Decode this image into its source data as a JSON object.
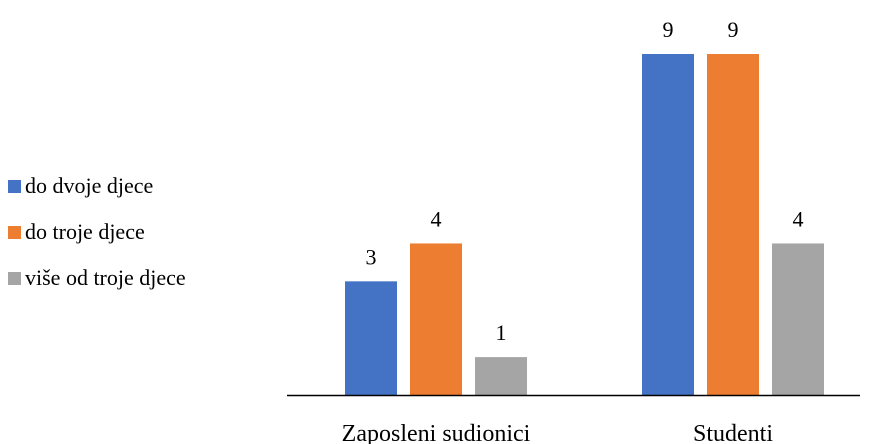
{
  "chart_data": {
    "type": "bar",
    "categories": [
      "Zaposleni sudionici",
      "Studenti"
    ],
    "series": [
      {
        "name": "do dvoje djece",
        "values": [
          3,
          9
        ],
        "color": "#4472C4"
      },
      {
        "name": "do troje djece",
        "values": [
          4,
          9
        ],
        "color": "#ED7D31"
      },
      {
        "name": "više od troje djece",
        "values": [
          1,
          4
        ],
        "color": "#A5A5A5"
      }
    ],
    "ylim": [
      0,
      9
    ],
    "grid": false,
    "data_labels": true,
    "legend_position": "left"
  }
}
